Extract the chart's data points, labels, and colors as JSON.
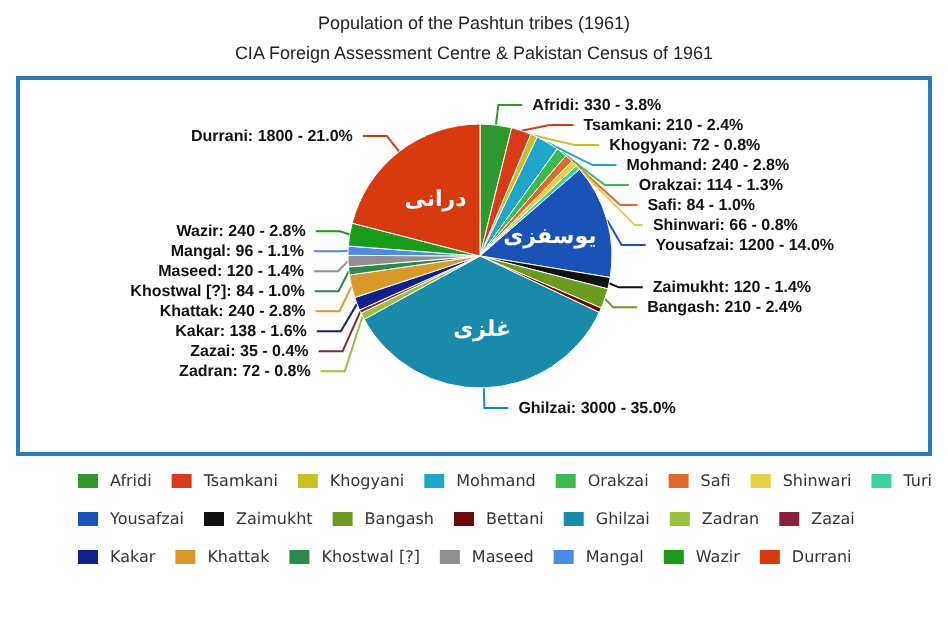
{
  "chart_data": {
    "type": "pie",
    "title": "Population of the Pashtun tribes (1961)",
    "subtitle": "CIA Foreign Assessment Centre & Pakistan Census of 1961",
    "categories": [
      "Afridi",
      "Tsamkani",
      "Khogyani",
      "Mohmand",
      "Orakzai",
      "Safi",
      "Shinwari",
      "Turi",
      "Yousafzai",
      "Zaimukht",
      "Bangash",
      "Bettani",
      "Ghilzai",
      "Zadran",
      "Zazai",
      "Kakar",
      "Khattak",
      "Khostwal [?]",
      "Maseed",
      "Mangal",
      "Wazir",
      "Durrani"
    ],
    "values": [
      330,
      210,
      72,
      240,
      114,
      84,
      66,
      50,
      1200,
      120,
      210,
      50,
      3000,
      72,
      35,
      138,
      240,
      84,
      120,
      96,
      240,
      1800
    ],
    "value_labels": [
      "Afridi: 330 - 3.8%",
      "Tsamkani: 210 - 2.4%",
      "Khogyani: 72 - 0.8%",
      "Mohmand: 240 - 2.8%",
      "Orakzai: 114 - 1.3%",
      "Safi: 84 - 1.0%",
      "Shinwari: 66 - 0.8%",
      null,
      "Yousafzai: 1200 - 14.0%",
      "Zaimukht: 120 - 1.4%",
      "Bangash: 210 - 2.4%",
      null,
      "Ghilzai: 3000 - 35.0%",
      "Zadran: 72 - 0.8%",
      "Zazai: 35 - 0.4%",
      "Kakar: 138 - 1.6%",
      "Khattak: 240 - 2.8%",
      "Khostwal [?]: 84 - 1.0%",
      "Maseed: 120 - 1.4%",
      "Mangal: 96 - 1.1%",
      "Wazir: 240 - 2.8%",
      "Durrani: 1800 - 21.0%"
    ],
    "colors": [
      "#2e9a2e",
      "#d83a1a",
      "#c8c020",
      "#1fa6c8",
      "#3cba50",
      "#e0682a",
      "#e8d040",
      "#40d0a0",
      "#1a52b8",
      "#111111",
      "#6a9a20",
      "#6a0a0a",
      "#1a8aaa",
      "#9ac040",
      "#8a2040",
      "#10208a",
      "#d8982a",
      "#2a8a4a",
      "#909090",
      "#4a8ae8",
      "#1a9a1a",
      "#d83a10"
    ],
    "annotations": [
      {
        "text": "درانی",
        "x": "Durrani"
      },
      {
        "text": "یوسفزی",
        "x": "Yousafzai"
      },
      {
        "text": "غلزی",
        "x": "Ghilzai"
      }
    ],
    "legend": "bottom"
  }
}
